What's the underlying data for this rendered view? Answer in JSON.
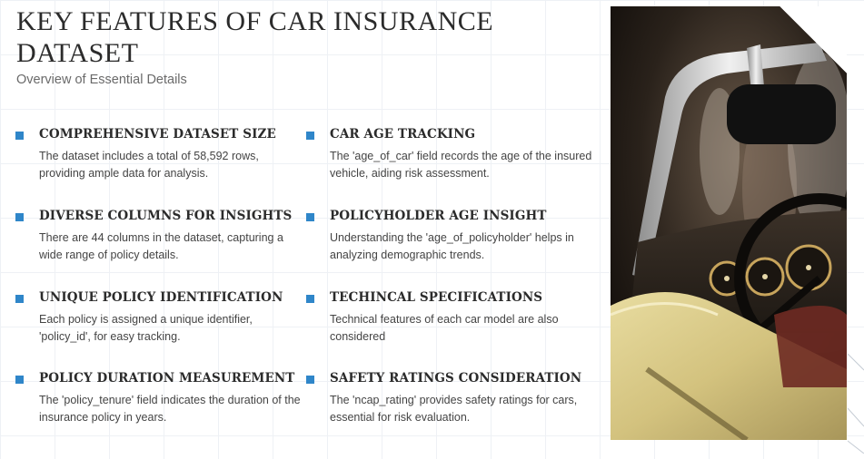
{
  "header": {
    "title": "KEY FEATURES OF CAR INSURANCE DATASET",
    "subtitle": "Overview of Essential Details"
  },
  "features": [
    {
      "title": "COMPREHENSIVE DATASET SIZE",
      "desc": "The dataset includes a total of 58,592 rows, providing ample data for analysis."
    },
    {
      "title": "CAR AGE TRACKING",
      "desc": "The 'age_of_car' field records the age of the insured vehicle, aiding risk assessment."
    },
    {
      "title": "DIVERSE COLUMNS FOR INSIGHTS",
      "desc": "There are 44 columns in the dataset, capturing a wide range of policy details."
    },
    {
      "title": "POLICYHOLDER AGE INSIGHT",
      "desc": "Understanding the 'age_of_policyholder' helps in analyzing demographic trends."
    },
    {
      "title": "UNIQUE POLICY IDENTIFICATION",
      "desc": "Each policy is assigned a unique identifier, 'policy_id', for easy tracking."
    },
    {
      "title": "TECHINCAL SPECIFICATIONS",
      "desc": "Technical features of each car model are also considered"
    },
    {
      "title": "POLICY DURATION MEASUREMENT",
      "desc": "The 'policy_tenure' field indicates the duration of the insurance policy in years."
    },
    {
      "title": "SAFETY RATINGS CONSIDERATION",
      "desc": "The 'ncap_rating' provides safety ratings for cars, essential for risk evaluation."
    }
  ],
  "colors": {
    "bullet": "#2f86c9",
    "car_body": "#d8c98a",
    "chrome": "#c9c9c9"
  },
  "image": {
    "subject": "vintage-convertible-car-interior-icon"
  }
}
